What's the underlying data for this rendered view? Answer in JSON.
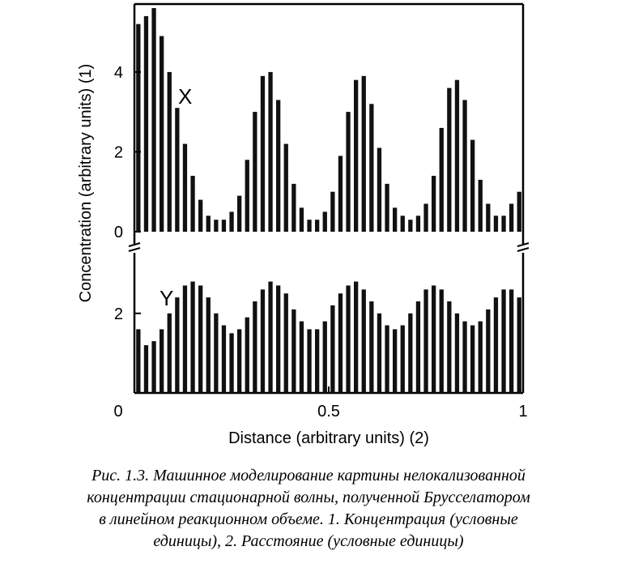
{
  "chart_data": [
    {
      "type": "bar",
      "panel_label": "X",
      "ylabel": "Concentration  (arbitrary units) (1)",
      "yticks": [
        "0",
        "2",
        "4"
      ],
      "ylim": [
        0,
        5.6
      ],
      "xlim": [
        0,
        1
      ],
      "grid": false,
      "x": [
        0.01,
        0.03,
        0.05,
        0.07,
        0.09,
        0.11,
        0.13,
        0.15,
        0.17,
        0.19,
        0.21,
        0.23,
        0.25,
        0.27,
        0.29,
        0.31,
        0.33,
        0.35,
        0.37,
        0.39,
        0.41,
        0.43,
        0.45,
        0.47,
        0.49,
        0.51,
        0.53,
        0.55,
        0.57,
        0.59,
        0.61,
        0.63,
        0.65,
        0.67,
        0.69,
        0.71,
        0.73,
        0.75,
        0.77,
        0.79,
        0.81,
        0.83,
        0.85,
        0.87,
        0.89,
        0.91,
        0.93,
        0.95,
        0.97,
        0.99
      ],
      "values": [
        5.2,
        5.4,
        5.6,
        4.9,
        4.0,
        3.1,
        2.2,
        1.4,
        0.8,
        0.4,
        0.3,
        0.3,
        0.5,
        0.9,
        1.8,
        3.0,
        3.9,
        4.0,
        3.3,
        2.2,
        1.2,
        0.6,
        0.3,
        0.3,
        0.5,
        1.0,
        1.9,
        3.0,
        3.8,
        3.9,
        3.2,
        2.1,
        1.2,
        0.6,
        0.4,
        0.3,
        0.4,
        0.7,
        1.4,
        2.6,
        3.6,
        3.8,
        3.3,
        2.3,
        1.3,
        0.7,
        0.4,
        0.4,
        0.7,
        1.0
      ]
    },
    {
      "type": "bar",
      "panel_label": "Y",
      "yticks": [
        "2"
      ],
      "ylim": [
        0,
        3.4
      ],
      "xlim": [
        0,
        1
      ],
      "xlabel": "Distance (arbitrary units) (2)",
      "xticks": [
        "0",
        "0.5",
        "1"
      ],
      "grid": false,
      "x": [
        0.01,
        0.03,
        0.05,
        0.07,
        0.09,
        0.11,
        0.13,
        0.15,
        0.17,
        0.19,
        0.21,
        0.23,
        0.25,
        0.27,
        0.29,
        0.31,
        0.33,
        0.35,
        0.37,
        0.39,
        0.41,
        0.43,
        0.45,
        0.47,
        0.49,
        0.51,
        0.53,
        0.55,
        0.57,
        0.59,
        0.61,
        0.63,
        0.65,
        0.67,
        0.69,
        0.71,
        0.73,
        0.75,
        0.77,
        0.79,
        0.81,
        0.83,
        0.85,
        0.87,
        0.89,
        0.91,
        0.93,
        0.95,
        0.97,
        0.99
      ],
      "values": [
        1.6,
        1.2,
        1.3,
        1.6,
        2.0,
        2.4,
        2.7,
        2.8,
        2.7,
        2.4,
        2.0,
        1.7,
        1.5,
        1.6,
        1.9,
        2.3,
        2.6,
        2.8,
        2.7,
        2.5,
        2.1,
        1.8,
        1.6,
        1.6,
        1.8,
        2.2,
        2.5,
        2.7,
        2.8,
        2.6,
        2.3,
        2.0,
        1.7,
        1.6,
        1.7,
        2.0,
        2.3,
        2.6,
        2.7,
        2.6,
        2.3,
        2.0,
        1.8,
        1.7,
        1.8,
        2.1,
        2.4,
        2.6,
        2.6,
        2.4
      ]
    }
  ],
  "caption": {
    "lines": [
      "Рис. 1.3. Машинное моделирование картины нелокализованной",
      "концентрации стационарной волны, полученной Брусселатором",
      "в линейном реакционном объеме. 1. Концентрация (условные",
      "единицы), 2. Расстояние (условные единицы)"
    ]
  }
}
